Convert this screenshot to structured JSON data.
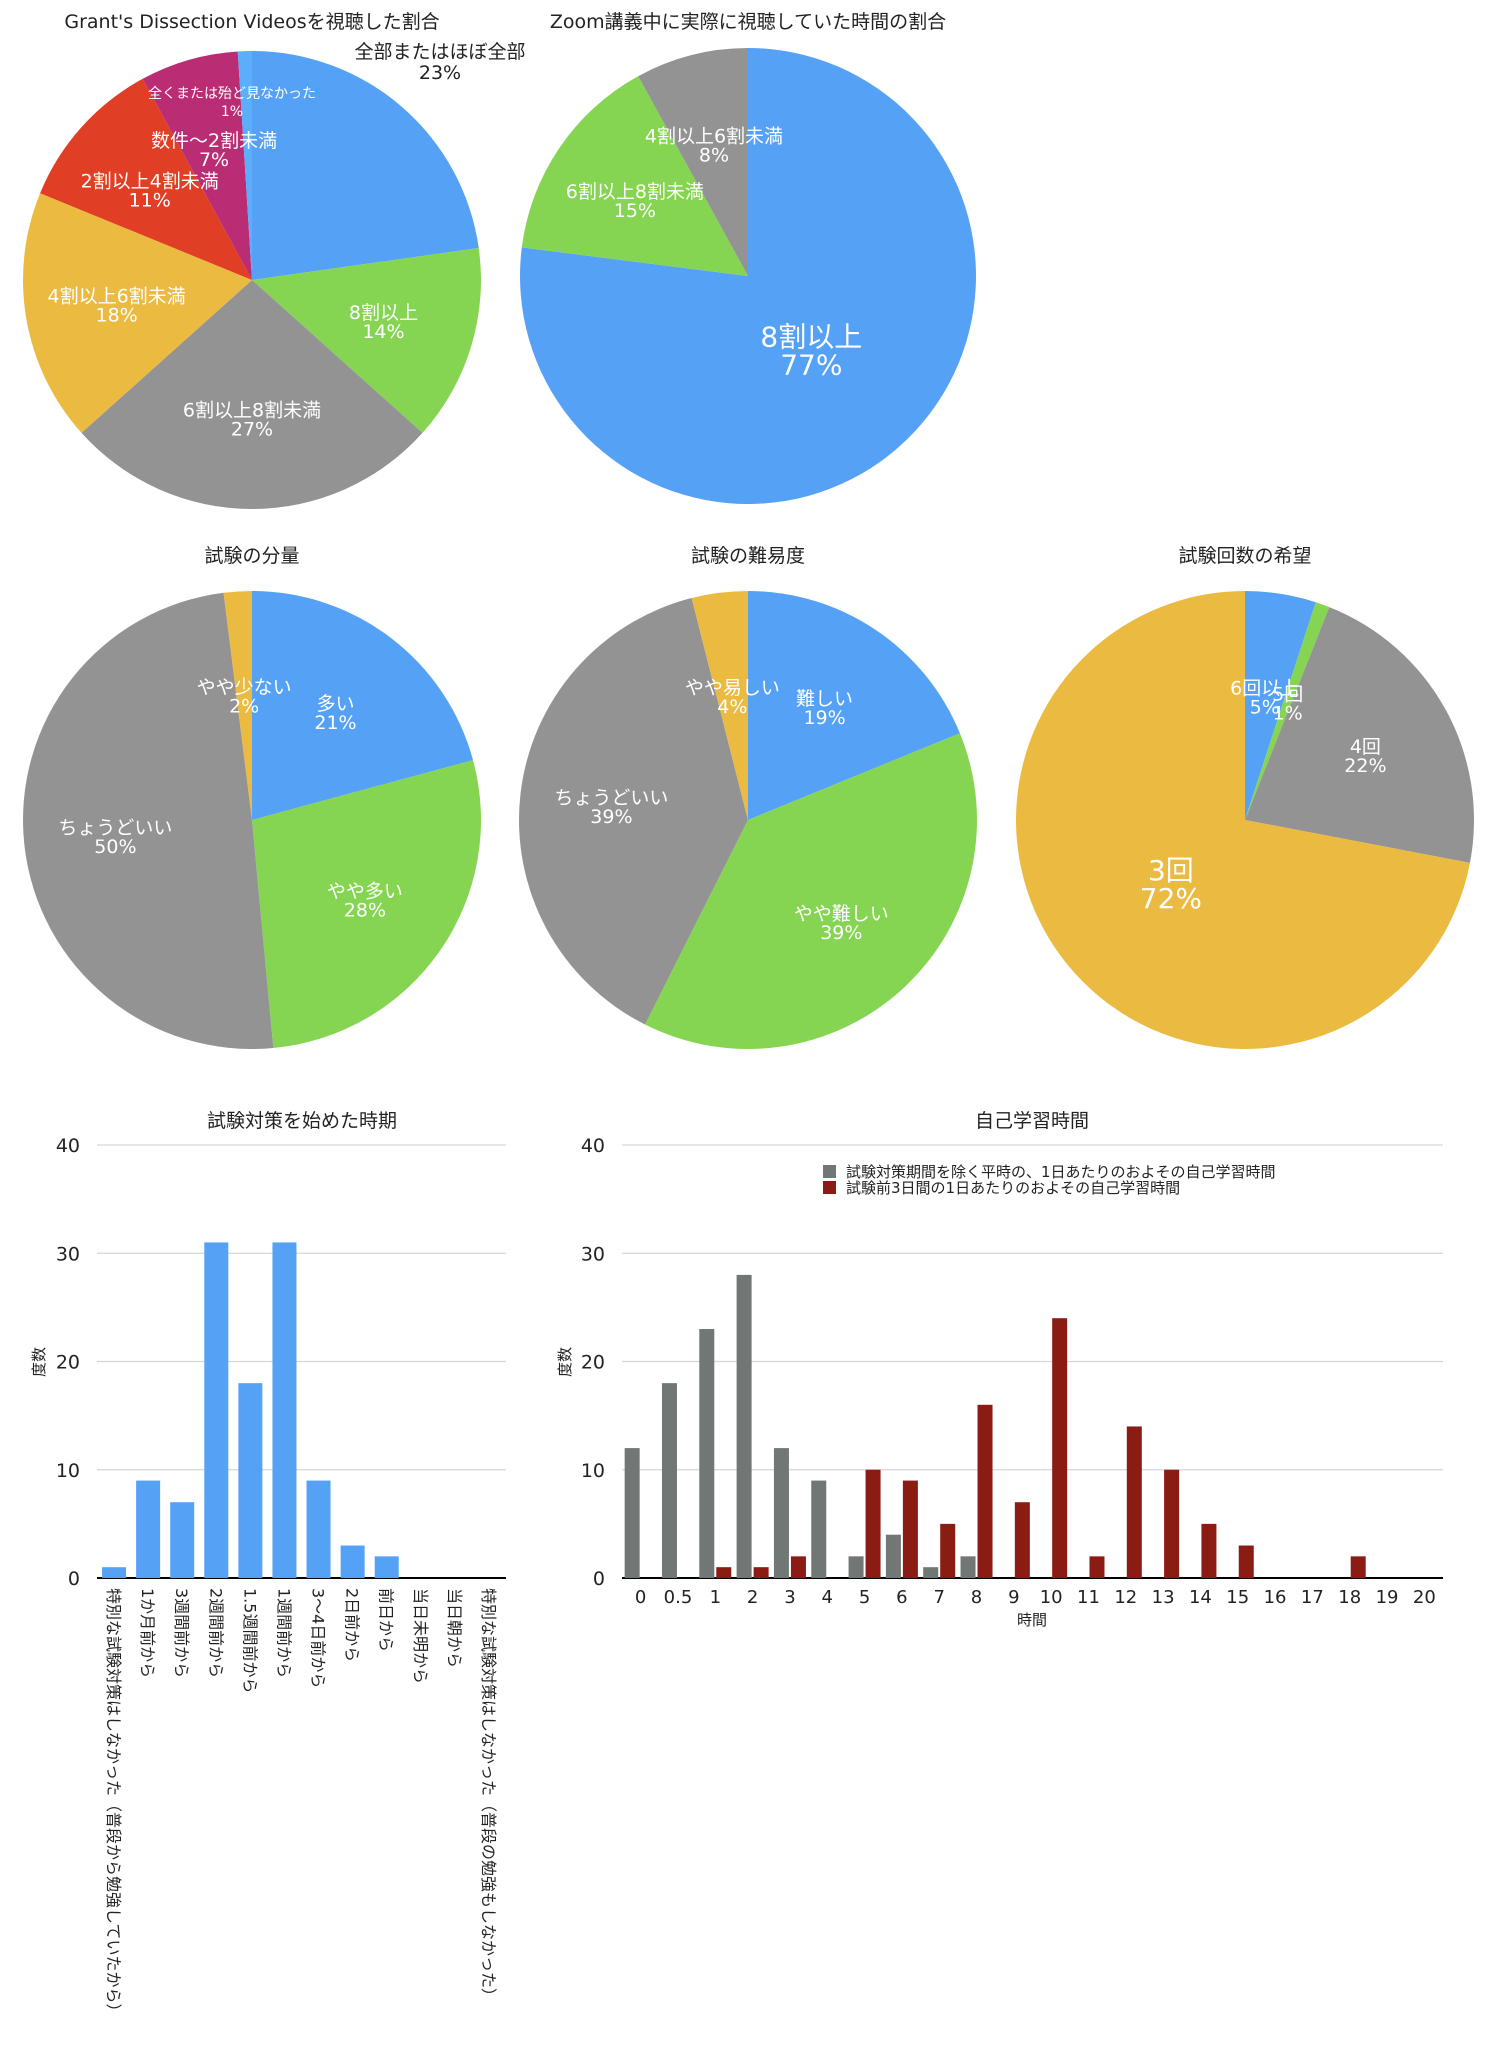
{
  "chart_data": [
    {
      "id": "grants",
      "type": "pie",
      "title": "Grant's Dissection Videosを視聴した割合",
      "start_angle_deg": 0,
      "direction": "clockwise",
      "slices": [
        {
          "label": "全部またはほぼ全部",
          "value": 23,
          "pct_label": "23%",
          "color": "#55A1F5",
          "label_outside": true
        },
        {
          "label": "8割以上",
          "value": 14,
          "pct_label": "14%",
          "color": "#86D552"
        },
        {
          "label": "6割以上8割未満",
          "value": 27,
          "pct_label": "27%",
          "color": "#939393"
        },
        {
          "label": "4割以上6割未満",
          "value": 18,
          "pct_label": "18%",
          "color": "#EBBB41"
        },
        {
          "label": "2割以上4割未満",
          "value": 11,
          "pct_label": "11%",
          "color": "#E03F25"
        },
        {
          "label": "数件〜2割未満",
          "value": 7,
          "pct_label": "7%",
          "color": "#BA2D74"
        },
        {
          "label": "全くまたは殆ど見なかった",
          "value": 1,
          "pct_label": "1%",
          "color": "#5AAEFA",
          "small_label": true
        }
      ]
    },
    {
      "id": "zoom",
      "type": "pie",
      "title": "Zoom講義中に実際に視聴していた時間の割合",
      "start_angle_deg": 0,
      "direction": "clockwise",
      "slices": [
        {
          "label": "8割以上",
          "value": 77,
          "pct_label": "77%",
          "color": "#55A1F5",
          "big_label": true
        },
        {
          "label": "6割以上8割未満",
          "value": 15,
          "pct_label": "15%",
          "color": "#86D552"
        },
        {
          "label": "4割以上6割未満",
          "value": 8,
          "pct_label": "8%",
          "color": "#939393"
        }
      ]
    },
    {
      "id": "volume",
      "type": "pie",
      "title": "試験の分量",
      "start_angle_deg": 0,
      "direction": "clockwise",
      "slices": [
        {
          "label": "多い",
          "value": 21,
          "pct_label": "21%",
          "color": "#55A1F5"
        },
        {
          "label": "やや多い",
          "value": 28,
          "pct_label": "28%",
          "color": "#86D552"
        },
        {
          "label": "ちょうどいい",
          "value": 50,
          "pct_label": "50%",
          "color": "#939393"
        },
        {
          "label": "やや少ない",
          "value": 2,
          "pct_label": "2%",
          "color": "#EBBB41"
        }
      ]
    },
    {
      "id": "difficulty",
      "type": "pie",
      "title": "試験の難易度",
      "start_angle_deg": 0,
      "direction": "clockwise",
      "slices": [
        {
          "label": "難しい",
          "value": 19,
          "pct_label": "19%",
          "color": "#55A1F5"
        },
        {
          "label": "やや難しい",
          "value": 39,
          "pct_label": "39%",
          "color": "#86D552"
        },
        {
          "label": "ちょうどいい",
          "value": 39,
          "pct_label": "39%",
          "color": "#939393"
        },
        {
          "label": "やや易しい",
          "value": 4,
          "pct_label": "4%",
          "color": "#EBBB41"
        }
      ]
    },
    {
      "id": "count",
      "type": "pie",
      "title": "試験回数の希望",
      "start_angle_deg": 0,
      "direction": "clockwise",
      "slices": [
        {
          "label": "6回以上",
          "value": 5,
          "pct_label": "5%",
          "color": "#55A1F5"
        },
        {
          "label": "5回",
          "value": 1,
          "pct_label": "1%",
          "color": "#86D552"
        },
        {
          "label": "4回",
          "value": 22,
          "pct_label": "22%",
          "color": "#939393"
        },
        {
          "label": "3回",
          "value": 72,
          "pct_label": "72%",
          "color": "#EBBB41",
          "big_label": true
        }
      ]
    },
    {
      "id": "start",
      "type": "bar",
      "title": "試験対策を始めた時期",
      "xlabel": "",
      "ylabel": "度数",
      "ylim": [
        0,
        40
      ],
      "yticks": [
        0,
        10,
        20,
        30,
        40
      ],
      "grid": true,
      "color": "#55A1F5",
      "categories": [
        "特別な試験対策はしなかった（普段から勉強していたから）",
        "1か月前から",
        "3週間前から",
        "2週間前から",
        "1.5週間前から",
        "1週間前から",
        "3〜4日前から",
        "2日前から",
        "前日から",
        "当日未明から",
        "当日朝から",
        "特別な試験対策はしなかった（普段の勉強もしなかった）"
      ],
      "values": [
        1,
        9,
        7,
        31,
        18,
        31,
        9,
        3,
        2,
        0,
        0,
        0
      ]
    },
    {
      "id": "study",
      "type": "bar",
      "title": "自己学習時間",
      "xlabel": "時間",
      "ylabel": "度数",
      "ylim": [
        0,
        40
      ],
      "yticks": [
        0,
        10,
        20,
        30,
        40
      ],
      "grid": true,
      "legend_position": "top-right",
      "categories": [
        "0",
        "0.5",
        "1",
        "2",
        "3",
        "4",
        "5",
        "6",
        "7",
        "8",
        "9",
        "10",
        "11",
        "12",
        "13",
        "14",
        "15",
        "16",
        "17",
        "18",
        "19",
        "20"
      ],
      "series": [
        {
          "name": "試験対策期間を除く平時の、1日あたりのおよその自己学習時間",
          "color": "#717775",
          "values": [
            12,
            18,
            23,
            28,
            12,
            9,
            2,
            4,
            1,
            2,
            0,
            0,
            0,
            0,
            0,
            0,
            0,
            0,
            0,
            0,
            0,
            0
          ]
        },
        {
          "name": "試験前3日間の1日あたりのおよその自己学習時間",
          "color": "#8A1C14",
          "values": [
            0,
            0,
            1,
            1,
            2,
            0,
            10,
            9,
            5,
            16,
            7,
            24,
            2,
            14,
            10,
            5,
            3,
            0,
            0,
            2,
            0,
            0
          ]
        }
      ]
    }
  ]
}
